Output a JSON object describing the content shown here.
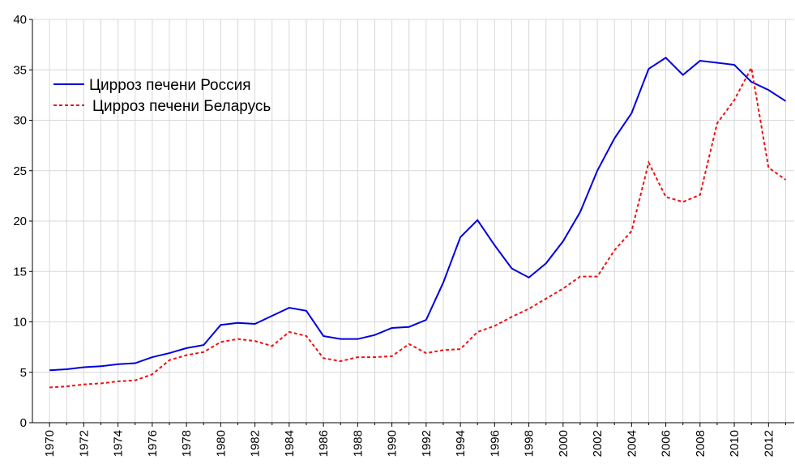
{
  "chart_data": {
    "type": "line",
    "x": [
      1970,
      1971,
      1972,
      1973,
      1974,
      1975,
      1976,
      1977,
      1978,
      1979,
      1980,
      1981,
      1982,
      1983,
      1984,
      1985,
      1986,
      1987,
      1988,
      1989,
      1990,
      1991,
      1992,
      1993,
      1994,
      1995,
      1996,
      1997,
      1998,
      1999,
      2000,
      2001,
      2002,
      2003,
      2004,
      2005,
      2006,
      2007,
      2008,
      2009,
      2010,
      2011,
      2012,
      2013
    ],
    "series": [
      {
        "name": "Цирроз печени Россия",
        "color": "#0000dd",
        "dash": "solid",
        "values": [
          5.2,
          5.3,
          5.5,
          5.6,
          5.8,
          5.9,
          6.5,
          6.9,
          7.4,
          7.7,
          9.7,
          9.9,
          9.8,
          10.6,
          11.4,
          11.1,
          8.6,
          8.3,
          8.3,
          8.7,
          9.4,
          9.5,
          10.2,
          13.9,
          18.4,
          20.1,
          17.6,
          15.3,
          14.4,
          15.8,
          18.0,
          20.9,
          25.0,
          28.2,
          30.7,
          35.1,
          36.2,
          34.5,
          35.9,
          35.7,
          35.5,
          33.8,
          33.0,
          31.9
        ]
      },
      {
        "name": "Цирроз печени Беларусь",
        "color": "#ee1111",
        "dash": "dashed",
        "values": [
          3.5,
          3.6,
          3.8,
          3.9,
          4.1,
          4.2,
          4.8,
          6.2,
          6.7,
          7.0,
          8.0,
          8.3,
          8.1,
          7.6,
          9.0,
          8.6,
          6.4,
          6.1,
          6.5,
          6.5,
          6.6,
          7.8,
          6.9,
          7.2,
          7.3,
          9.0,
          9.6,
          10.5,
          11.3,
          12.3,
          13.3,
          14.5,
          14.5,
          17.1,
          19.0,
          25.8,
          22.4,
          21.9,
          22.6,
          29.7,
          32.0,
          35.2,
          25.3,
          24.1
        ]
      }
    ],
    "xlim": [
      1969,
      2013.5
    ],
    "xticks": [
      1970,
      1972,
      1974,
      1976,
      1978,
      1980,
      1982,
      1984,
      1986,
      1988,
      1990,
      1992,
      1994,
      1996,
      1998,
      2000,
      2002,
      2004,
      2006,
      2008,
      2010,
      2012
    ],
    "xticks_minor": [
      1971,
      1973,
      1975,
      1977,
      1979,
      1981,
      1983,
      1985,
      1987,
      1989,
      1991,
      1993,
      1995,
      1997,
      1999,
      2001,
      2003,
      2005,
      2007,
      2009,
      2011,
      2013
    ],
    "ylim": [
      0,
      40
    ],
    "yticks": [
      0,
      5,
      10,
      15,
      20,
      25,
      30,
      35,
      40
    ],
    "grid": true,
    "legend": "upper left"
  }
}
